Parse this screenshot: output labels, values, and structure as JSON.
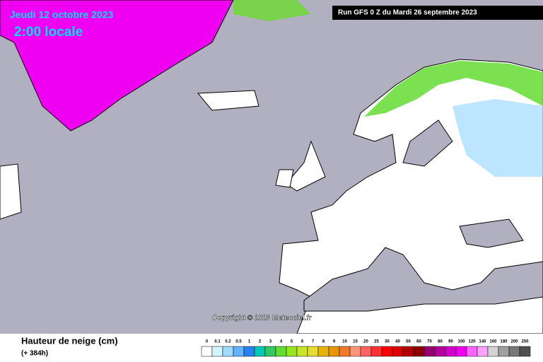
{
  "header": {
    "date": "Jeudi 12 octobre 2023",
    "time": "2:00 locale",
    "run": "Run GFS 0 Z du Mardi 26 septembre 2023"
  },
  "copyright": "Copyright © 2023 Meteociel.fr",
  "legend": {
    "title": "Hauteur de neige (cm)",
    "lead": "(+ 384h)",
    "labels": [
      "0",
      "0.1",
      "0.2",
      "0.5",
      "1",
      "2",
      "3",
      "4",
      "5",
      "6",
      "7",
      "8",
      "9",
      "10",
      "15",
      "20",
      "25",
      "30",
      "40",
      "50",
      "60",
      "70",
      "80",
      "90",
      "100",
      "120",
      "140",
      "160",
      "180",
      "200",
      "250"
    ],
    "colors": [
      "#ffffff",
      "#d2f5ff",
      "#a0dcff",
      "#64b4ff",
      "#2882f0",
      "#00c8b4",
      "#32c864",
      "#64dc32",
      "#96e61e",
      "#c8e628",
      "#e6dc32",
      "#e6b400",
      "#e69600",
      "#f07828",
      "#ff9678",
      "#ff6464",
      "#ff3232",
      "#ff0000",
      "#dc0000",
      "#b40000",
      "#8c0000",
      "#96006e",
      "#b4009b",
      "#d200c8",
      "#f000f0",
      "#ff64ff",
      "#ffa0ff",
      "#d2d2d2",
      "#a0a0a0",
      "#787878",
      "#505050"
    ]
  }
}
